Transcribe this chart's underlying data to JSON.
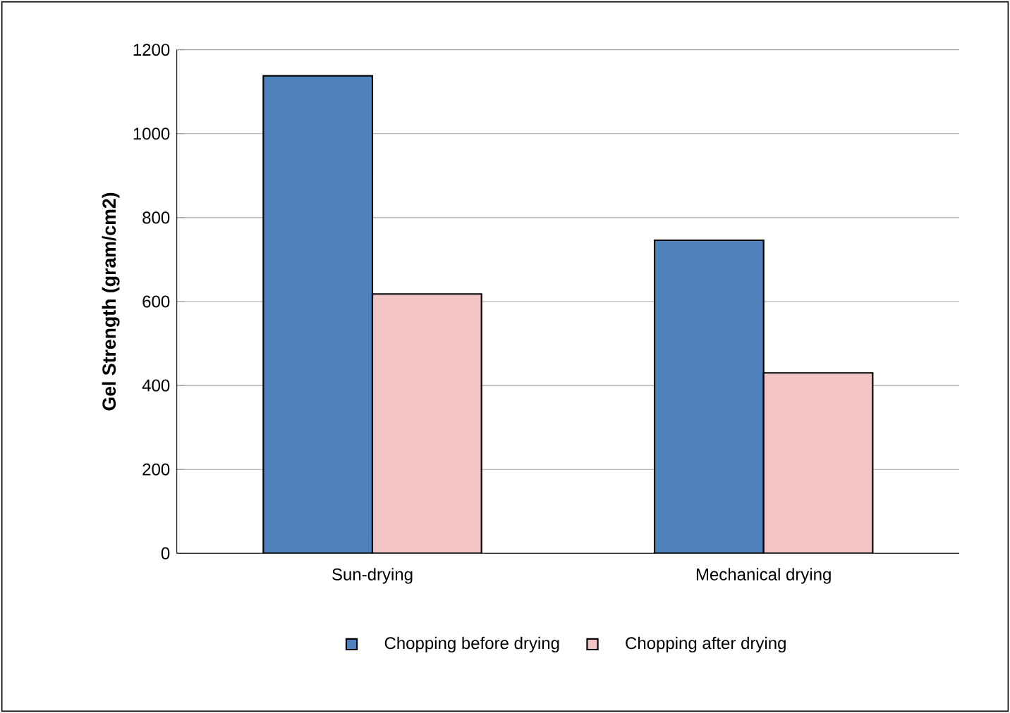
{
  "chart_data": {
    "type": "bar",
    "ylabel": "Gel Strength (gram/cm2)",
    "categories": [
      "Sun-drying",
      "Mechanical drying"
    ],
    "series": [
      {
        "name": "Chopping before drying",
        "color": "#4f81bd",
        "values": [
          1138,
          746
        ]
      },
      {
        "name": "Chopping after drying",
        "color": "#f2c4c4",
        "values": [
          618,
          430
        ]
      }
    ],
    "ylim": [
      0,
      1200
    ],
    "yticks": [
      0,
      200,
      400,
      600,
      800,
      1000,
      1200
    ],
    "grid": "y",
    "legend": "bottom"
  }
}
